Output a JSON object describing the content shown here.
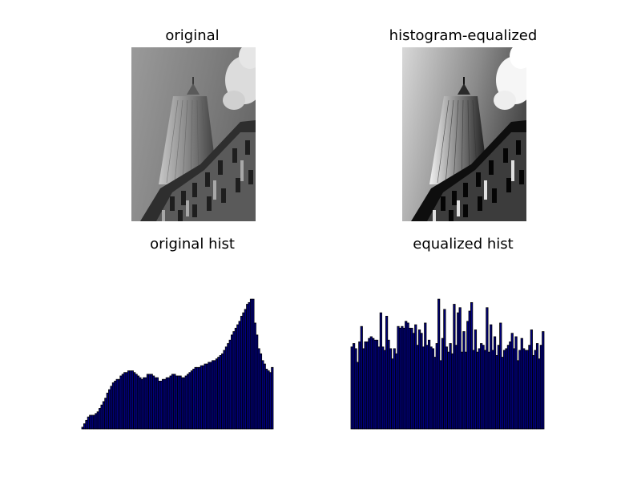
{
  "figure": {
    "bar_fill": "#000080",
    "bar_edge": "#000000",
    "background": "#ffffff"
  },
  "panels": {
    "orig_img_title": "original",
    "eq_img_title": "histogram-equalized",
    "orig_hist_title": "original hist",
    "eq_hist_title": "equalized hist"
  },
  "chart_data": [
    {
      "type": "bar",
      "title": "original hist",
      "axis": "off",
      "xlim": [
        0,
        100
      ],
      "ylim": [
        0,
        100
      ],
      "values": [
        1,
        3,
        5,
        7,
        8,
        8,
        8,
        9,
        10,
        12,
        14,
        16,
        18,
        21,
        23,
        25,
        27,
        28,
        29,
        29,
        31,
        32,
        33,
        33,
        34,
        34,
        34,
        33,
        32,
        31,
        30,
        29,
        30,
        30,
        32,
        32,
        32,
        31,
        30,
        30,
        28,
        28,
        29,
        29,
        30,
        30,
        31,
        32,
        32,
        31,
        31,
        31,
        30,
        30,
        31,
        32,
        33,
        34,
        35,
        36,
        36,
        36,
        37,
        37,
        38,
        38,
        39,
        39,
        40,
        40,
        41,
        42,
        43,
        44,
        46,
        48,
        50,
        52,
        55,
        57,
        59,
        61,
        63,
        66,
        68,
        70,
        73,
        74,
        76,
        76,
        62,
        55,
        47,
        44,
        40,
        38,
        35,
        34,
        33,
        36
      ]
    },
    {
      "type": "bar",
      "title": "equalized hist",
      "axis": "off",
      "xlim": [
        0,
        100
      ],
      "ylim": [
        0,
        100
      ],
      "values": [
        48,
        50,
        47,
        39,
        51,
        60,
        47,
        51,
        51,
        53,
        54,
        53,
        52,
        52,
        48,
        68,
        48,
        46,
        66,
        52,
        47,
        41,
        47,
        44,
        60,
        59,
        60,
        59,
        63,
        62,
        59,
        59,
        56,
        61,
        49,
        58,
        56,
        48,
        62,
        49,
        52,
        48,
        47,
        42,
        50,
        76,
        40,
        53,
        70,
        48,
        45,
        50,
        44,
        73,
        49,
        68,
        71,
        45,
        57,
        45,
        63,
        69,
        74,
        46,
        58,
        45,
        47,
        50,
        49,
        46,
        71,
        45,
        61,
        46,
        54,
        43,
        49,
        62,
        42,
        46,
        47,
        49,
        51,
        56,
        47,
        54,
        40,
        46,
        53,
        47,
        46,
        46,
        49,
        58,
        43,
        46,
        50,
        41,
        49,
        57
      ]
    }
  ]
}
